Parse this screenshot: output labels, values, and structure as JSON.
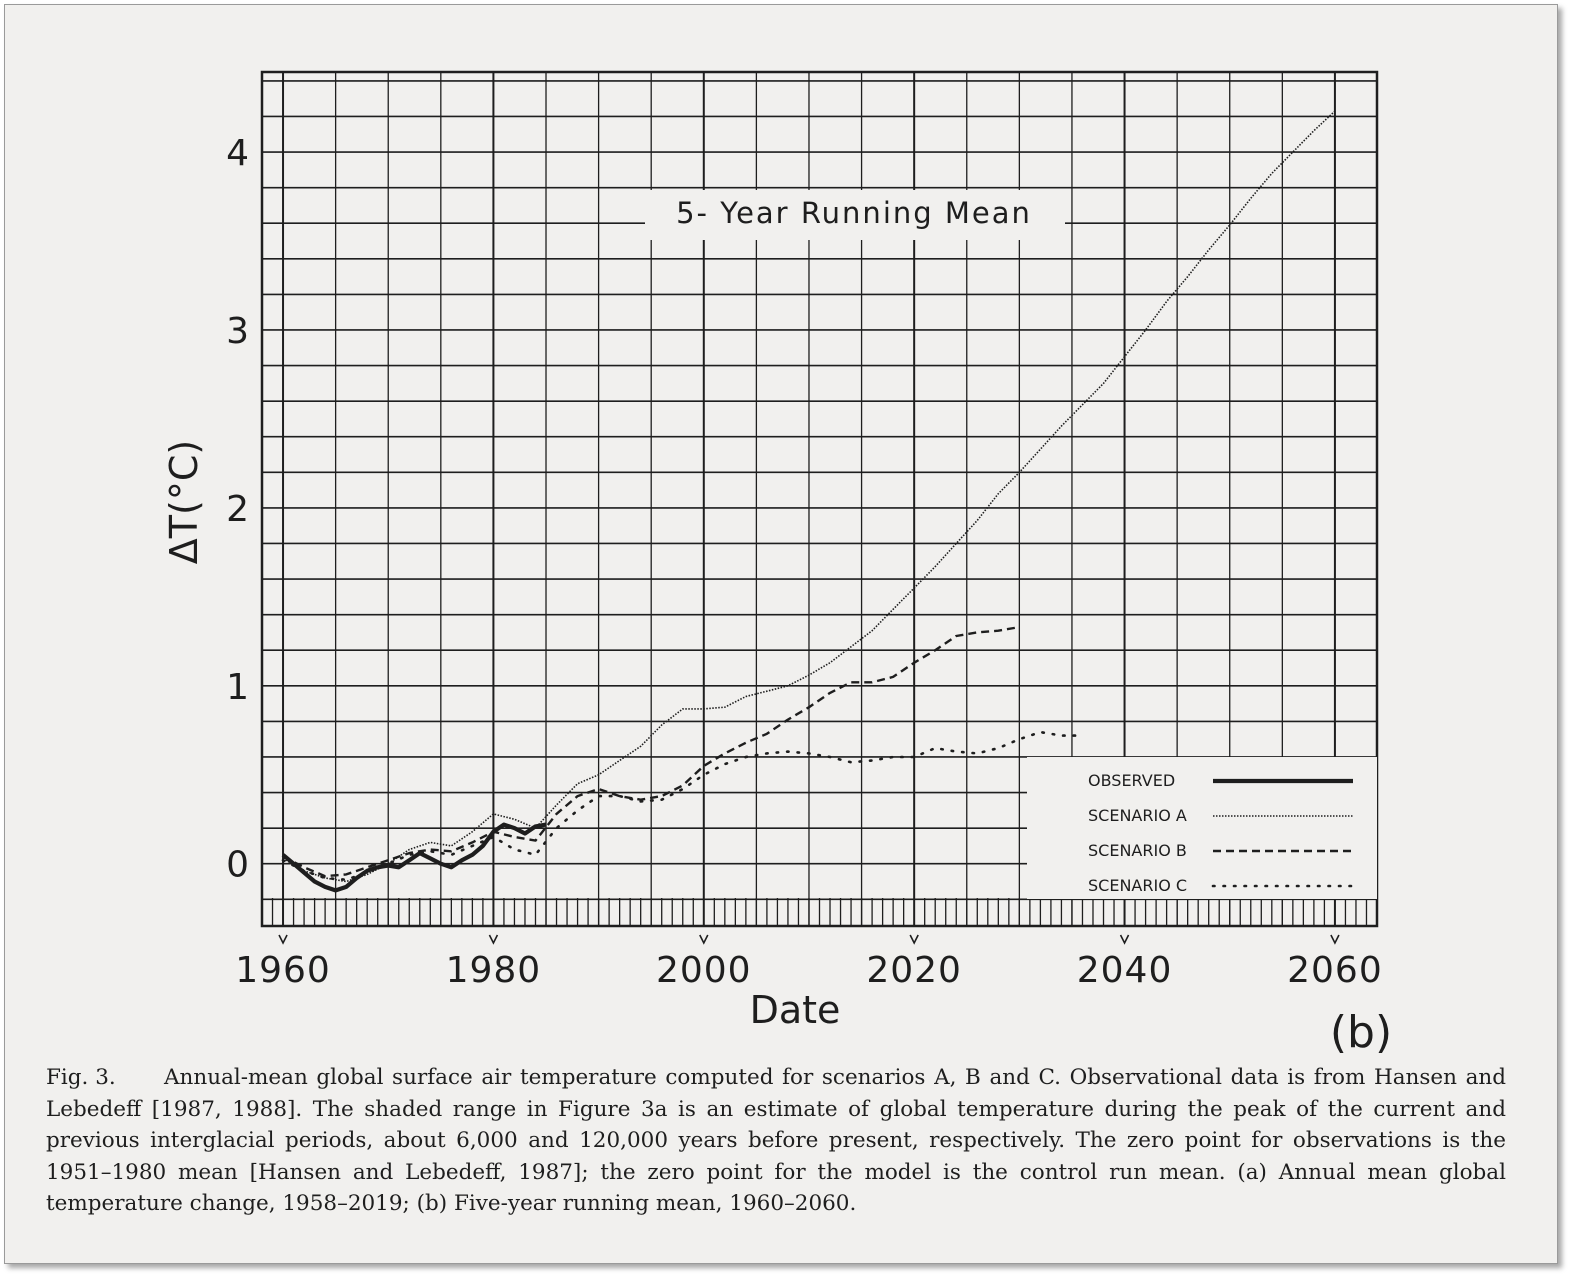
{
  "chart_data": {
    "type": "line",
    "title": "5- Year  Running  Mean",
    "xlabel": "Date",
    "ylabel": "ΔT(°C)",
    "panel_label": "(b)",
    "xlim": [
      1958,
      2064
    ],
    "ylim": [
      -0.35,
      4.45
    ],
    "x_ticks": [
      1960,
      1980,
      2000,
      2020,
      2040,
      2060
    ],
    "y_ticks": [
      0,
      1,
      2,
      3,
      4
    ],
    "grid": true,
    "legend_position": "bottom-right",
    "series": [
      {
        "name": "OBSERVED",
        "style": "solid-thick",
        "x": [
          1960,
          1961,
          1962,
          1963,
          1964,
          1965,
          1966,
          1967,
          1968,
          1969,
          1970,
          1971,
          1972,
          1973,
          1974,
          1975,
          1976,
          1977,
          1978,
          1979,
          1980,
          1981,
          1982,
          1983,
          1984,
          1985
        ],
        "y": [
          0.05,
          0.0,
          -0.05,
          -0.1,
          -0.13,
          -0.15,
          -0.13,
          -0.08,
          -0.04,
          -0.02,
          -0.01,
          -0.02,
          0.02,
          0.06,
          0.03,
          0.0,
          -0.02,
          0.02,
          0.05,
          0.1,
          0.18,
          0.22,
          0.2,
          0.17,
          0.21,
          0.22
        ]
      },
      {
        "name": "SCENARIO A",
        "style": "dotted-dense",
        "x": [
          1960,
          1962,
          1964,
          1966,
          1968,
          1970,
          1972,
          1974,
          1976,
          1978,
          1980,
          1982,
          1984,
          1986,
          1988,
          1990,
          1992,
          1994,
          1996,
          1998,
          2000,
          2002,
          2004,
          2006,
          2008,
          2010,
          2012,
          2014,
          2016,
          2018,
          2020,
          2022,
          2024,
          2026,
          2028,
          2030,
          2032,
          2034,
          2036,
          2038,
          2040,
          2042,
          2044,
          2046,
          2048,
          2050,
          2052,
          2054,
          2056,
          2058,
          2060
        ],
        "y": [
          0.03,
          -0.04,
          -0.08,
          -0.1,
          -0.06,
          0.0,
          0.08,
          0.12,
          0.1,
          0.18,
          0.28,
          0.25,
          0.2,
          0.33,
          0.45,
          0.5,
          0.58,
          0.66,
          0.78,
          0.87,
          0.87,
          0.88,
          0.94,
          0.97,
          1.0,
          1.06,
          1.13,
          1.22,
          1.31,
          1.43,
          1.55,
          1.67,
          1.8,
          1.93,
          2.08,
          2.2,
          2.33,
          2.46,
          2.58,
          2.7,
          2.85,
          3.0,
          3.16,
          3.3,
          3.45,
          3.59,
          3.74,
          3.88,
          4.0,
          4.12,
          4.23
        ]
      },
      {
        "name": "SCENARIO B",
        "style": "dashed",
        "x": [
          1960,
          1962,
          1964,
          1966,
          1968,
          1970,
          1972,
          1974,
          1976,
          1978,
          1980,
          1982,
          1984,
          1986,
          1988,
          1990,
          1992,
          1994,
          1996,
          1998,
          2000,
          2002,
          2004,
          2006,
          2008,
          2010,
          2012,
          2014,
          2016,
          2018,
          2020,
          2022,
          2024,
          2026,
          2028,
          2030
        ],
        "y": [
          0.04,
          -0.02,
          -0.07,
          -0.06,
          -0.02,
          0.02,
          0.06,
          0.08,
          0.07,
          0.12,
          0.18,
          0.15,
          0.13,
          0.28,
          0.38,
          0.42,
          0.38,
          0.36,
          0.38,
          0.44,
          0.55,
          0.62,
          0.68,
          0.73,
          0.81,
          0.88,
          0.96,
          1.02,
          1.02,
          1.05,
          1.13,
          1.2,
          1.28,
          1.3,
          1.31,
          1.33
        ]
      },
      {
        "name": "SCENARIO C",
        "style": "dotted-sparse",
        "x": [
          1960,
          1962,
          1964,
          1966,
          1968,
          1970,
          1972,
          1974,
          1976,
          1978,
          1980,
          1982,
          1984,
          1986,
          1988,
          1990,
          1992,
          1994,
          1996,
          1998,
          2000,
          2002,
          2004,
          2006,
          2008,
          2010,
          2012,
          2014,
          2016,
          2018,
          2020,
          2022,
          2024,
          2026,
          2028,
          2030,
          2032,
          2034,
          2036
        ],
        "y": [
          0.02,
          -0.04,
          -0.08,
          -0.09,
          -0.05,
          0.0,
          0.05,
          0.07,
          0.05,
          0.1,
          0.15,
          0.08,
          0.05,
          0.2,
          0.3,
          0.38,
          0.38,
          0.35,
          0.36,
          0.42,
          0.5,
          0.56,
          0.6,
          0.62,
          0.63,
          0.62,
          0.6,
          0.57,
          0.58,
          0.6,
          0.6,
          0.65,
          0.63,
          0.62,
          0.65,
          0.7,
          0.74,
          0.72,
          0.72
        ]
      }
    ]
  },
  "caption": {
    "figure_label": "Fig. 3.",
    "text": "Annual-mean global surface air temperature computed for scenarios A, B and C. Observational data is from Hansen and Lebedeff [1987, 1988]. The shaded range in Figure 3a is an estimate of global temperature during the peak of the current and previous interglacial periods, about 6,000 and 120,000 years before present, respectively. The zero point for observations is the 1951–1980 mean [Hansen and Lebedeff, 1987]; the zero point for the model is the control run mean. (a) Annual mean global temperature change, 1958–2019; (b) Five-year running mean, 1960–2060."
  },
  "colors": {
    "ink": "#1e1e1e",
    "paper": "#f1f0ee"
  }
}
